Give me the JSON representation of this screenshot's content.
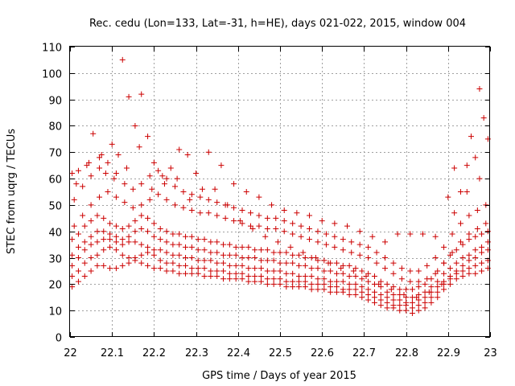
{
  "chart_data": {
    "type": "scatter",
    "title": "Rec. cedu (Lon=133, Lat=-31, h=HE), days 021-022, 2015, window 004",
    "xlabel": "GPS time / Days of year 2015",
    "ylabel": "STEC from uqrg / TECUs",
    "xlim": [
      22,
      23
    ],
    "ylim": [
      0,
      110
    ],
    "xticks": [
      "22",
      "22.1",
      "22.2",
      "22.3",
      "22.4",
      "22.5",
      "22.6",
      "22.7",
      "22.8",
      "22.9",
      "23"
    ],
    "yticks": [
      "0",
      "10",
      "20",
      "30",
      "40",
      "50",
      "60",
      "70",
      "80",
      "90",
      "100",
      "110"
    ],
    "grid": true,
    "marker": "plus",
    "color": "#cc0000",
    "series": [
      {
        "x": [
          22.005,
          22.02,
          22.035,
          22.05,
          22.065,
          22.08,
          22.095,
          22.11,
          22.125,
          22.14,
          22.155,
          22.17,
          22.185,
          22.2,
          22.215,
          22.23,
          22.245,
          22.26,
          22.275,
          22.29,
          22.305,
          22.32,
          22.335,
          22.35,
          22.365,
          22.38,
          22.395,
          22.41,
          22.425,
          22.44,
          22.455,
          22.47,
          22.485,
          22.5,
          22.515,
          22.53,
          22.545,
          22.56,
          22.575,
          22.59,
          22.605,
          22.62,
          22.635,
          22.65,
          22.665,
          22.68,
          22.695,
          22.71,
          22.725,
          22.74,
          22.755,
          22.77,
          22.785,
          22.8,
          22.815,
          22.83,
          22.845,
          22.86,
          22.875,
          22.89,
          22.905,
          22.92,
          22.935,
          22.95,
          22.965,
          22.98,
          22.995
        ],
        "y": [
          19,
          21,
          23,
          25,
          27,
          27,
          26,
          26,
          27,
          28,
          29,
          28,
          27,
          26,
          26,
          25,
          25,
          24,
          24,
          24,
          24,
          23,
          23,
          23,
          22,
          22,
          22,
          22,
          21,
          21,
          21,
          20,
          20,
          20,
          19,
          19,
          19,
          19,
          18,
          18,
          18,
          17,
          17,
          17,
          16,
          16,
          15,
          14,
          13,
          12,
          11,
          11,
          10,
          10,
          9,
          10,
          11,
          13,
          15,
          18,
          20,
          22,
          23,
          24,
          24,
          25,
          26
        ]
      },
      {
        "x": [
          22.005,
          22.02,
          22.035,
          22.05,
          22.065,
          22.08,
          22.095,
          22.11,
          22.125,
          22.14,
          22.155,
          22.17,
          22.185,
          22.2,
          22.215,
          22.23,
          22.245,
          22.26,
          22.275,
          22.29,
          22.305,
          22.32,
          22.335,
          22.35,
          22.365,
          22.38,
          22.395,
          22.41,
          22.425,
          22.44,
          22.455,
          22.47,
          22.485,
          22.5,
          22.515,
          22.53,
          22.545,
          22.56,
          22.575,
          22.59,
          22.605,
          22.62,
          22.635,
          22.65,
          22.665,
          22.68,
          22.695,
          22.71,
          22.725,
          22.74,
          22.755,
          22.77,
          22.785,
          22.8,
          22.815,
          22.83,
          22.845,
          22.86,
          22.875,
          22.89,
          22.905,
          22.92,
          22.935,
          22.95,
          22.965,
          22.98,
          22.995
        ],
        "y": [
          23,
          25,
          28,
          30,
          31,
          33,
          34,
          33,
          31,
          30,
          30,
          31,
          32,
          31,
          29,
          28,
          28,
          27,
          27,
          26,
          26,
          26,
          25,
          25,
          25,
          24,
          24,
          24,
          23,
          23,
          23,
          22,
          22,
          22,
          21,
          21,
          21,
          21,
          20,
          20,
          20,
          19,
          19,
          18,
          18,
          18,
          17,
          16,
          15,
          14,
          13,
          12,
          12,
          12,
          11,
          12,
          13,
          15,
          17,
          20,
          22,
          24,
          25,
          26,
          27,
          28,
          29
        ]
      },
      {
        "x": [
          22.005,
          22.02,
          22.035,
          22.05,
          22.065,
          22.08,
          22.095,
          22.11,
          22.125,
          22.14,
          22.155,
          22.17,
          22.185,
          22.2,
          22.215,
          22.23,
          22.245,
          22.26,
          22.275,
          22.29,
          22.305,
          22.32,
          22.335,
          22.35,
          22.365,
          22.38,
          22.395,
          22.41,
          22.425,
          22.44,
          22.455,
          22.47,
          22.485,
          22.5,
          22.515,
          22.53,
          22.545,
          22.56,
          22.575,
          22.59,
          22.605,
          22.62,
          22.635,
          22.65,
          22.665,
          22.68,
          22.695,
          22.71,
          22.725,
          22.74,
          22.755,
          22.77,
          22.785,
          22.8,
          22.815,
          22.83,
          22.845,
          22.86,
          22.875,
          22.89,
          22.905,
          22.92,
          22.935,
          22.95,
          22.965,
          22.98,
          22.995
        ],
        "y": [
          27,
          30,
          33,
          35,
          36,
          37,
          37,
          36,
          35,
          36,
          36,
          35,
          34,
          33,
          33,
          32,
          31,
          31,
          30,
          30,
          29,
          29,
          29,
          28,
          28,
          27,
          27,
          27,
          26,
          26,
          26,
          25,
          25,
          25,
          24,
          24,
          23,
          23,
          23,
          22,
          22,
          21,
          21,
          21,
          20,
          20,
          19,
          18,
          17,
          16,
          15,
          14,
          14,
          13,
          13,
          14,
          15,
          17,
          19,
          21,
          23,
          25,
          27,
          29,
          30,
          32,
          33
        ]
      },
      {
        "x": [
          22.005,
          22.02,
          22.035,
          22.05,
          22.065,
          22.08,
          22.095,
          22.11,
          22.125,
          22.14,
          22.155,
          22.17,
          22.185,
          22.2,
          22.215,
          22.23,
          22.245,
          22.26,
          22.275,
          22.29,
          22.305,
          22.32,
          22.335,
          22.35,
          22.365,
          22.38,
          22.395,
          22.41,
          22.425,
          22.44,
          22.455,
          22.47,
          22.485,
          22.5,
          22.515,
          22.53,
          22.545,
          22.56,
          22.575,
          22.59,
          22.605,
          22.62,
          22.635,
          22.65,
          22.665,
          22.68,
          22.695,
          22.71,
          22.725,
          22.74,
          22.755,
          22.77,
          22.785,
          22.8,
          22.815,
          22.83,
          22.845,
          22.86,
          22.875,
          22.89,
          22.905,
          22.92,
          22.935,
          22.95,
          22.965,
          22.98,
          22.995
        ],
        "y": [
          31,
          34,
          36,
          38,
          40,
          40,
          39,
          38,
          37,
          38,
          40,
          41,
          40,
          38,
          37,
          36,
          35,
          35,
          34,
          34,
          33,
          33,
          32,
          32,
          31,
          31,
          31,
          30,
          30,
          30,
          29,
          29,
          29,
          28,
          28,
          28,
          27,
          27,
          26,
          26,
          25,
          25,
          24,
          24,
          23,
          23,
          22,
          21,
          20,
          19,
          17,
          16,
          16,
          15,
          15,
          16,
          17,
          19,
          21,
          24,
          26,
          28,
          30,
          31,
          33,
          34,
          36
        ]
      },
      {
        "x": [
          22.005,
          22.02,
          22.035,
          22.05,
          22.065,
          22.08,
          22.095,
          22.11,
          22.125,
          22.14,
          22.155,
          22.17,
          22.185,
          22.2,
          22.215,
          22.23,
          22.245,
          22.26,
          22.275,
          22.29,
          22.305,
          22.32,
          22.335,
          22.35,
          22.365,
          22.38,
          22.395,
          22.41,
          22.425,
          22.44,
          22.455,
          22.47,
          22.485,
          22.5,
          22.515,
          22.53,
          22.545,
          22.56,
          22.575,
          22.59,
          22.605,
          22.62,
          22.635,
          22.65,
          22.665,
          22.68,
          22.695,
          22.71,
          22.725,
          22.74,
          22.755,
          22.77,
          22.785,
          22.8,
          22.815,
          22.83,
          22.845,
          22.86,
          22.875,
          22.89,
          22.905,
          22.92,
          22.935,
          22.95,
          22.965,
          22.98,
          22.995
        ],
        "y": [
          37,
          39,
          42,
          44,
          46,
          45,
          43,
          42,
          41,
          42,
          44,
          46,
          45,
          43,
          41,
          40,
          39,
          39,
          38,
          38,
          37,
          37,
          36,
          36,
          35,
          35,
          34,
          34,
          34,
          33,
          33,
          33,
          32,
          32,
          32,
          31,
          31,
          30,
          30,
          29,
          29,
          28,
          28,
          27,
          27,
          26,
          25,
          24,
          23,
          21,
          20,
          19,
          18,
          18,
          18,
          19,
          20,
          22,
          25,
          28,
          31,
          33,
          35,
          37,
          38,
          39,
          40
        ]
      },
      {
        "x": [
          22.01,
          22.03,
          22.05,
          22.07,
          22.09,
          22.11,
          22.13,
          22.15,
          22.17,
          22.19,
          22.21,
          22.23,
          22.25,
          22.27,
          22.29,
          22.31,
          22.33,
          22.35,
          22.37,
          22.39,
          22.41,
          22.43,
          22.45,
          22.47,
          22.49,
          22.51,
          22.53,
          22.55,
          22.57,
          22.59,
          22.61,
          22.63,
          22.65,
          22.67,
          22.69,
          22.71,
          22.73,
          22.75,
          22.77,
          22.79,
          22.81,
          22.83,
          22.85,
          22.87,
          22.89,
          22.91,
          22.93,
          22.95,
          22.97,
          22.99
        ],
        "y": [
          42,
          46,
          50,
          53,
          55,
          53,
          51,
          49,
          50,
          52,
          54,
          52,
          50,
          49,
          48,
          47,
          47,
          46,
          45,
          44,
          43,
          42,
          42,
          41,
          41,
          40,
          39,
          38,
          37,
          36,
          35,
          34,
          33,
          32,
          31,
          30,
          28,
          26,
          24,
          22,
          21,
          21,
          22,
          24,
          28,
          32,
          36,
          39,
          41,
          43
        ]
      },
      {
        "x": [
          22.01,
          22.03,
          22.05,
          22.07,
          22.09,
          22.11,
          22.13,
          22.15,
          22.17,
          22.19,
          22.21,
          22.23,
          22.25,
          22.27,
          22.29,
          22.31,
          22.33,
          22.35,
          22.37,
          22.39,
          22.41,
          22.43,
          22.45,
          22.47,
          22.49,
          22.51,
          22.53,
          22.55,
          22.57,
          22.59,
          22.61,
          22.63,
          22.65,
          22.67,
          22.69,
          22.71,
          22.73,
          22.75,
          22.77,
          22.79,
          22.81,
          22.83,
          22.85,
          22.87,
          22.89,
          22.91,
          22.93,
          22.95,
          22.97,
          22.99
        ],
        "y": [
          52,
          57,
          61,
          64,
          66,
          62,
          58,
          56,
          58,
          61,
          63,
          60,
          57,
          55,
          54,
          53,
          52,
          51,
          50,
          49,
          48,
          47,
          46,
          45,
          45,
          44,
          43,
          42,
          41,
          40,
          39,
          38,
          37,
          36,
          35,
          34,
          32,
          30,
          28,
          26,
          25,
          25,
          27,
          30,
          34,
          39,
          43,
          46,
          48,
          50
        ]
      },
      {
        "x": [
          22.005,
          22.02,
          22.04,
          22.055,
          22.07,
          22.085,
          22.1,
          22.115,
          22.125,
          22.14,
          22.155,
          22.17,
          22.185,
          22.2,
          22.22,
          22.24,
          22.26,
          22.28,
          22.3,
          22.33,
          22.36,
          22.39,
          22.42,
          22.45,
          22.48,
          22.51,
          22.54,
          22.57,
          22.6,
          22.63,
          22.66,
          22.69,
          22.72,
          22.75,
          22.78,
          22.81,
          22.84,
          22.87,
          22.9,
          22.915,
          22.93,
          22.945,
          22.955,
          22.965,
          22.975,
          22.985,
          22.995
        ],
        "y": [
          62,
          63,
          65,
          77,
          68,
          62,
          73,
          69,
          105,
          91,
          80,
          92,
          76,
          66,
          61,
          64,
          71,
          69,
          62,
          70,
          65,
          58,
          55,
          53,
          50,
          48,
          47,
          46,
          44,
          43,
          42,
          40,
          38,
          36,
          39,
          39,
          39,
          38,
          53,
          64,
          55,
          65,
          76,
          68,
          94,
          83,
          75
        ]
      },
      {
        "x": [
          22.015,
          22.045,
          22.075,
          22.105,
          22.135,
          22.165,
          22.195,
          22.225,
          22.255,
          22.285,
          22.315,
          22.345,
          22.375,
          22.405,
          22.435,
          22.465,
          22.495,
          22.525,
          22.555,
          22.585,
          22.615,
          22.645,
          22.675,
          22.705,
          22.735,
          22.765,
          22.795,
          22.825,
          22.855,
          22.885,
          22.915,
          22.945,
          22.975
        ],
        "y": [
          58,
          66,
          69,
          60,
          64,
          72,
          56,
          58,
          60,
          52,
          56,
          56,
          50,
          44,
          41,
          38,
          36,
          34,
          32,
          30,
          28,
          26,
          25,
          23,
          20,
          18,
          16,
          15,
          17,
          20,
          47,
          55,
          60
        ]
      }
    ]
  }
}
